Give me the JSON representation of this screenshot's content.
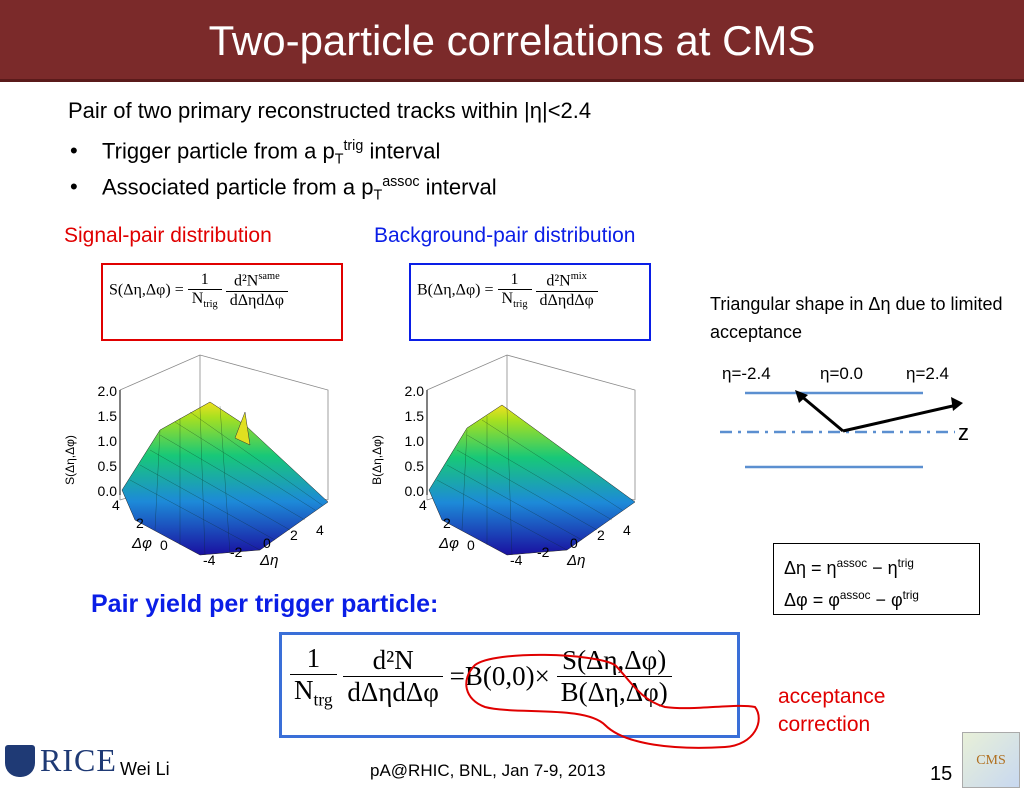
{
  "title": "Two-particle correlations at CMS",
  "intro": "Pair of two primary reconstructed tracks within |η|<2.4",
  "bullets": [
    {
      "pre": "Trigger particle from a p",
      "sub": "T",
      "sup": "trig",
      "post": " interval"
    },
    {
      "pre": "Associated particle from a p",
      "sub": "T",
      "sup": "assoc",
      "post": " interval"
    }
  ],
  "signal_label": "Signal-pair distribution",
  "background_label": "Background-pair distribution",
  "signal_eq": {
    "lhs": "S(Δη,Δφ) =",
    "num1": "1",
    "den1": "N",
    "den1_sub": "trig",
    "num2": "d²N",
    "num2_sup": "same",
    "den2": "dΔηdΔφ"
  },
  "background_eq": {
    "lhs": "B(Δη,Δφ) =",
    "num1": "1",
    "den1": "N",
    "den1_sub": "trig",
    "num2": "d²N",
    "num2_sup": "mix",
    "den2": "dΔηdΔφ"
  },
  "plots": {
    "signal_zlabel": "S(Δη,Δφ)",
    "background_zlabel": "B(Δη,Δφ)",
    "z_ticks": [
      "2.0",
      "1.5",
      "1.0",
      "0.5",
      "0.0"
    ],
    "phi_ticks": [
      "4",
      "2",
      "0"
    ],
    "eta_ticks": [
      "-4",
      "-2",
      "0",
      "2",
      "4"
    ],
    "phi_label": "Δφ",
    "eta_label": "Δη"
  },
  "triangle_note": "Triangular shape in Δη due to limited acceptance",
  "eta_labels": [
    "η=-2.4",
    "η=0.0",
    "η=2.4"
  ],
  "z_axis_label": "z",
  "definitions": [
    "Δη = η",
    "assoc",
    " − η",
    "trig",
    "Δφ = φ",
    "assoc",
    " − φ",
    "trig"
  ],
  "pair_yield_heading": "Pair yield per trigger particle:",
  "yield_eq": {
    "num1": "1",
    "den1": "N",
    "den1_sub": "trg",
    "num2": "d²N",
    "den2": "dΔηdΔφ",
    "eq": "=B(0,0)×",
    "num3": "S(Δη,Δφ)",
    "den3": "B(Δη,Δφ)"
  },
  "acceptance_note": "acceptance correction",
  "footer": {
    "logo": "RICE",
    "author": "Wei Li",
    "conference": "pA@RHIC, BNL, Jan 7-9, 2013",
    "page": "15",
    "cms_logo": "CMS"
  },
  "colors": {
    "title_bg": "#7b2a2a",
    "red": "#e00000",
    "blue": "#0a1ee6",
    "accent_line": "#5b8fd0"
  }
}
